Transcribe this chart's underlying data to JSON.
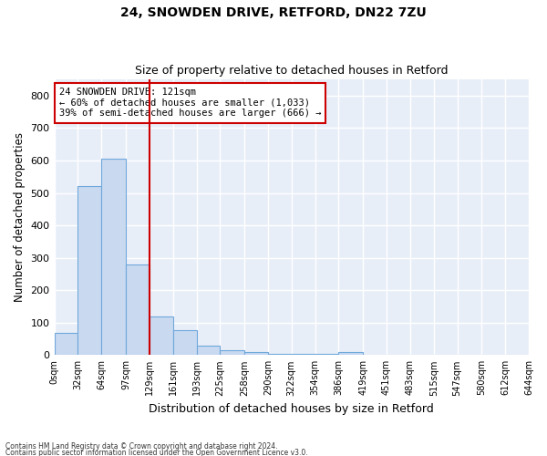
{
  "title1": "24, SNOWDEN DRIVE, RETFORD, DN22 7ZU",
  "title2": "Size of property relative to detached houses in Retford",
  "xlabel": "Distribution of detached houses by size in Retford",
  "ylabel": "Number of detached properties",
  "bin_edges": [
    0,
    32,
    64,
    97,
    129,
    161,
    193,
    225,
    258,
    290,
    322,
    354,
    386,
    419,
    451,
    483,
    515,
    547,
    580,
    612,
    644
  ],
  "bar_heights": [
    68,
    520,
    605,
    280,
    120,
    77,
    28,
    15,
    10,
    5,
    5,
    5,
    8,
    0,
    0,
    0,
    0,
    0,
    0,
    0
  ],
  "bar_color": "#c8d9f0",
  "bar_edge_color": "#6fa8dc",
  "vline_x": 129,
  "vline_color": "#cc0000",
  "annotation_text": "24 SNOWDEN DRIVE: 121sqm\n← 60% of detached houses are smaller (1,033)\n39% of semi-detached houses are larger (666) →",
  "annotation_box_color": "white",
  "annotation_box_edge_color": "#cc0000",
  "ylim": [
    0,
    850
  ],
  "yticks": [
    0,
    100,
    200,
    300,
    400,
    500,
    600,
    700,
    800
  ],
  "tick_labels": [
    "0sqm",
    "32sqm",
    "64sqm",
    "97sqm",
    "129sqm",
    "161sqm",
    "193sqm",
    "225sqm",
    "258sqm",
    "290sqm",
    "322sqm",
    "354sqm",
    "386sqm",
    "419sqm",
    "451sqm",
    "483sqm",
    "515sqm",
    "547sqm",
    "580sqm",
    "612sqm",
    "644sqm"
  ],
  "background_color": "#e8eef8",
  "grid_color": "white",
  "footer1": "Contains HM Land Registry data © Crown copyright and database right 2024.",
  "footer2": "Contains public sector information licensed under the Open Government Licence v3.0."
}
